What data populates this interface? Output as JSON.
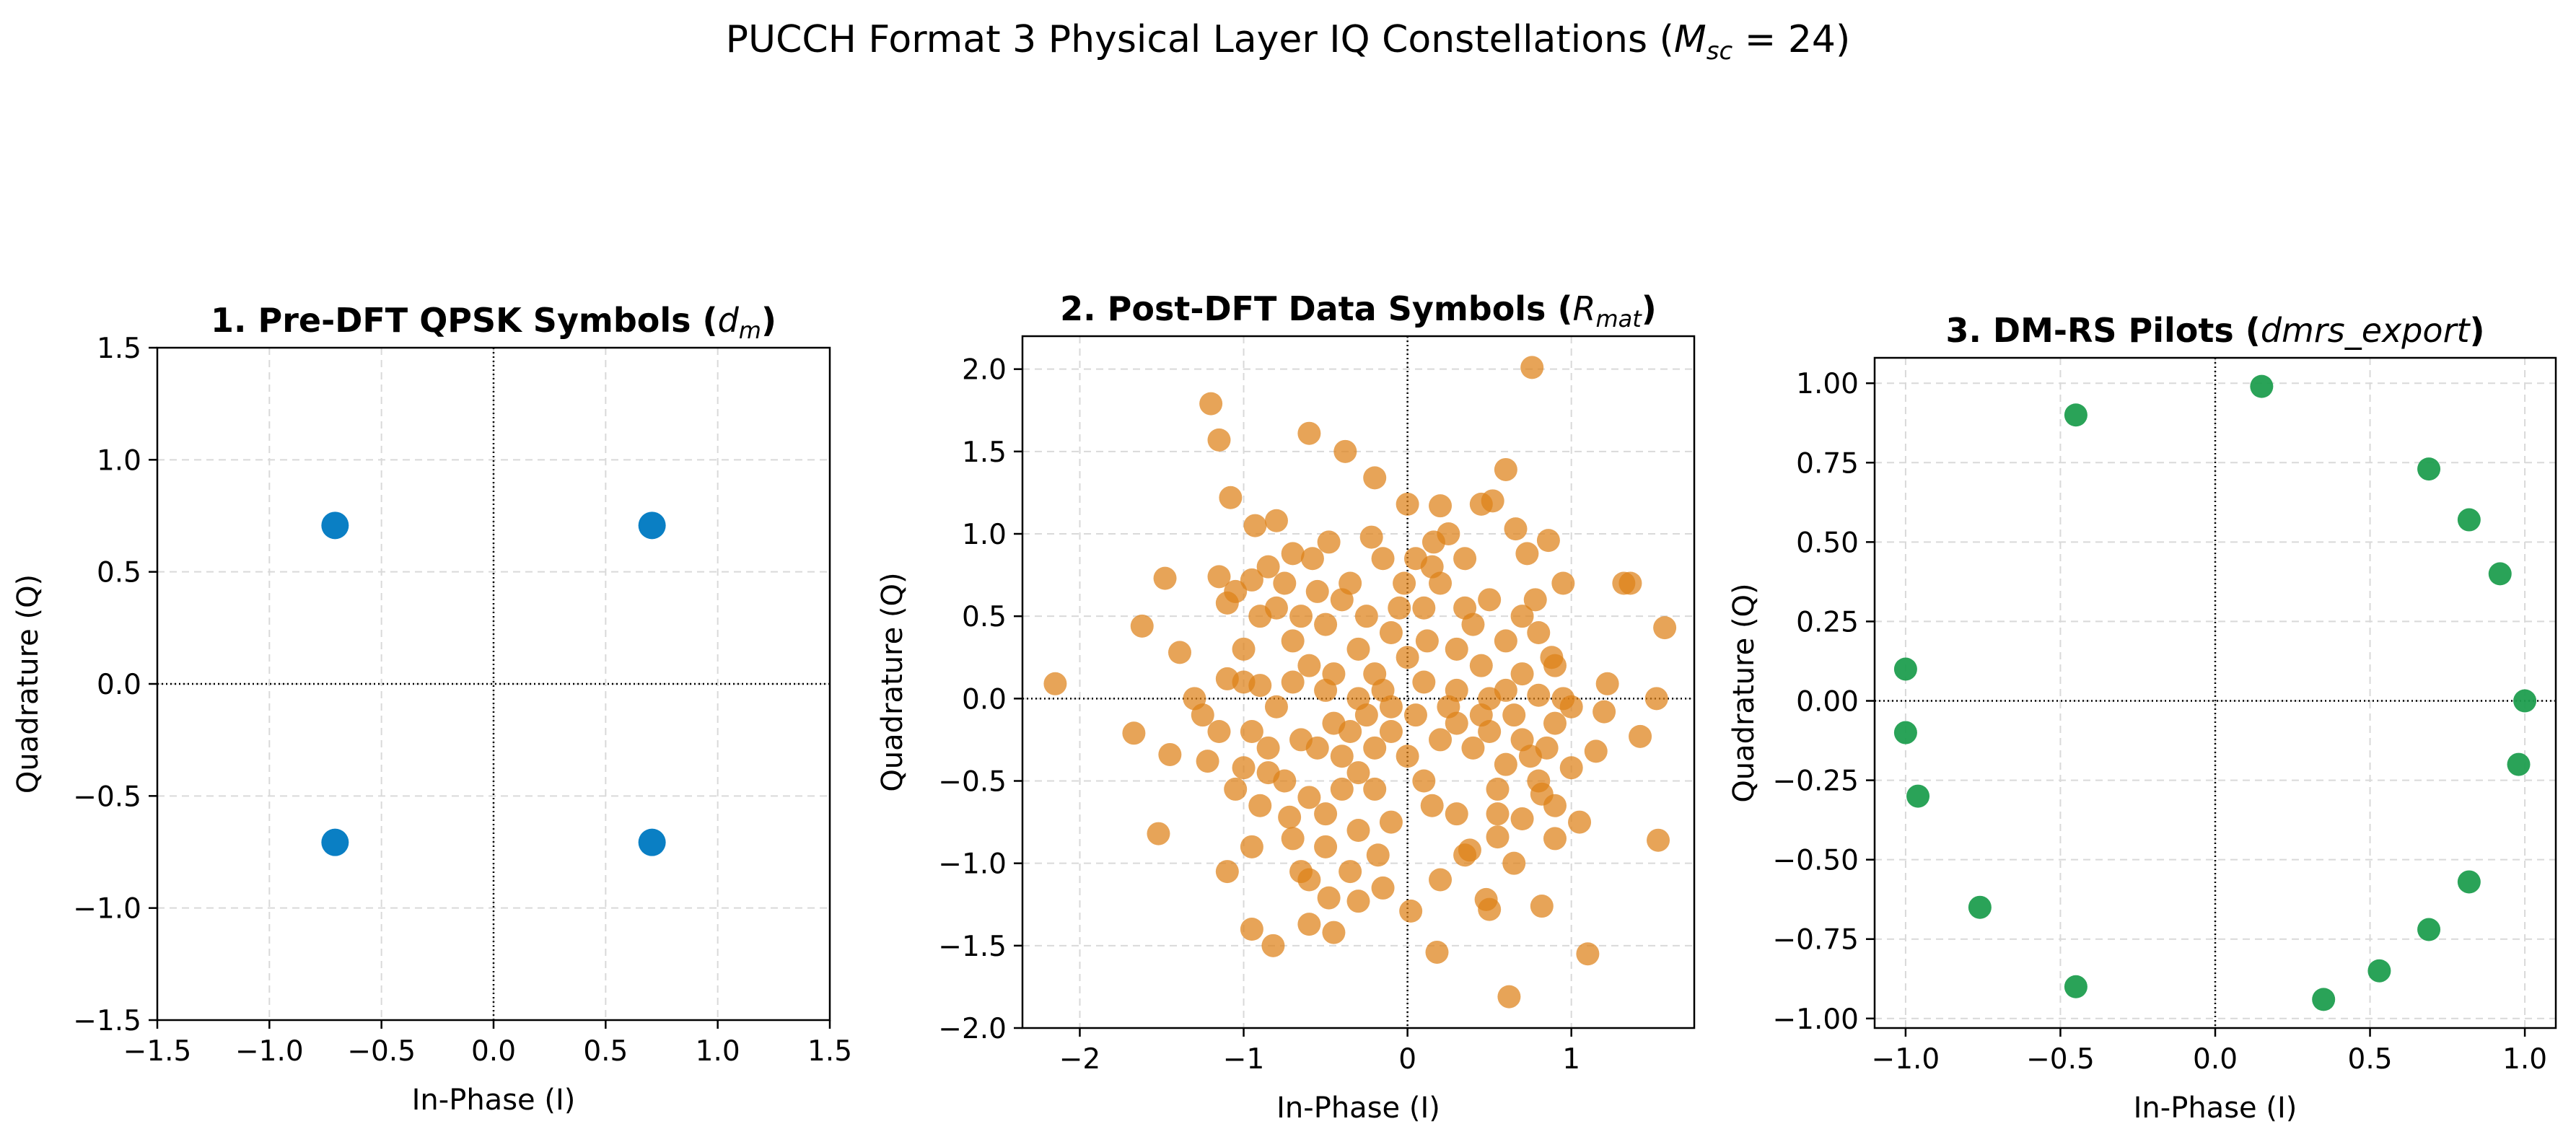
{
  "figure": {
    "title": "PUCCH Format 3 Physical Layer IQ Constellations (",
    "title_math_var": "M",
    "title_math_sub": "sc",
    "title_math_eq": " = 24",
    "title_close": ")"
  },
  "chart_data": [
    {
      "type": "scatter",
      "title": "1. Pre-DFT QPSK Symbols (",
      "title_math": "d",
      "title_math_sub": "m",
      "title_close": ")",
      "xlabel": "In-Phase (I)",
      "ylabel": "Quadrature (Q)",
      "xlim": [
        -1.5,
        1.5
      ],
      "ylim": [
        -1.5,
        1.5
      ],
      "xticks": [
        -1.5,
        -1.0,
        -0.5,
        0.0,
        0.5,
        1.0,
        1.5
      ],
      "yticks": [
        -1.5,
        -1.0,
        -0.5,
        0.0,
        0.5,
        1.0,
        1.5
      ],
      "xtick_labels": [
        "−1.5",
        "−1.0",
        "−0.5",
        "0.0",
        "0.5",
        "1.0",
        "1.5"
      ],
      "ytick_labels": [
        "−1.5",
        "−1.0",
        "−0.5",
        "0.0",
        "0.5",
        "1.0",
        "1.5"
      ],
      "grid": true,
      "color": "#0a7fc4",
      "points": [
        [
          0.707,
          0.707
        ],
        [
          -0.707,
          0.707
        ],
        [
          -0.707,
          -0.707
        ],
        [
          0.707,
          -0.707
        ]
      ]
    },
    {
      "type": "scatter",
      "title": "2. Post-DFT Data Symbols (",
      "title_math": "R",
      "title_math_sub": "mat",
      "title_close": ")",
      "xlabel": "In-Phase (I)",
      "ylabel": "Quadrature (Q)",
      "xlim": [
        -2.35,
        1.75
      ],
      "ylim": [
        -2.0,
        2.2
      ],
      "xticks": [
        -2,
        -1,
        0,
        1
      ],
      "yticks": [
        -2.0,
        -1.5,
        -1.0,
        -0.5,
        0.0,
        0.5,
        1.0,
        1.5,
        2.0
      ],
      "xtick_labels": [
        "−2",
        "−1",
        "0",
        "1"
      ],
      "ytick_labels": [
        "−2.0",
        "−1.5",
        "−1.0",
        "−0.5",
        "0.0",
        "0.5",
        "1.0",
        "1.5",
        "2.0"
      ],
      "grid": true,
      "color": "#de8118",
      "points": [
        [
          -2.15,
          0.09
        ],
        [
          -1.2,
          1.79
        ],
        [
          -1.15,
          1.57
        ],
        [
          -1.08,
          1.22
        ],
        [
          -0.6,
          1.61
        ],
        [
          -0.38,
          1.5
        ],
        [
          -0.2,
          1.34
        ],
        [
          0.76,
          2.01
        ],
        [
          0.6,
          1.39
        ],
        [
          -1.48,
          0.73
        ],
        [
          -1.62,
          0.44
        ],
        [
          -1.39,
          0.28
        ],
        [
          -1.15,
          0.74
        ],
        [
          -1.1,
          0.58
        ],
        [
          -0.95,
          0.72
        ],
        [
          -0.93,
          1.05
        ],
        [
          -0.8,
          1.08
        ],
        [
          -0.7,
          0.88
        ],
        [
          -0.58,
          0.85
        ],
        [
          -0.48,
          0.95
        ],
        [
          -0.22,
          0.98
        ],
        [
          -0.02,
          0.7
        ],
        [
          0.0,
          1.18
        ],
        [
          0.16,
          0.95
        ],
        [
          0.2,
          1.17
        ],
        [
          0.45,
          1.18
        ],
        [
          0.52,
          1.2
        ],
        [
          0.66,
          1.03
        ],
        [
          0.73,
          0.88
        ],
        [
          0.86,
          0.96
        ],
        [
          1.32,
          0.7
        ],
        [
          1.57,
          0.43
        ],
        [
          1.36,
          0.7
        ],
        [
          -1.67,
          -0.21
        ],
        [
          -1.45,
          -0.34
        ],
        [
          -1.52,
          -0.82
        ],
        [
          -1.22,
          -0.38
        ],
        [
          -1.1,
          -1.05
        ],
        [
          -1.0,
          -0.42
        ],
        [
          -0.95,
          -1.4
        ],
        [
          -0.82,
          -1.5
        ],
        [
          -0.72,
          -0.72
        ],
        [
          -0.65,
          -1.05
        ],
        [
          -0.6,
          -1.37
        ],
        [
          -0.48,
          -1.21
        ],
        [
          -0.45,
          -1.42
        ],
        [
          -0.3,
          -1.23
        ],
        [
          -0.18,
          -0.95
        ],
        [
          0.02,
          -1.29
        ],
        [
          0.18,
          -1.54
        ],
        [
          0.2,
          -1.1
        ],
        [
          0.48,
          -1.22
        ],
        [
          0.5,
          -1.28
        ],
        [
          0.62,
          -1.81
        ],
        [
          0.82,
          -1.26
        ],
        [
          1.1,
          -1.55
        ],
        [
          1.53,
          -0.86
        ],
        [
          0.38,
          -0.92
        ],
        [
          0.55,
          -0.84
        ],
        [
          0.7,
          -0.73
        ],
        [
          0.82,
          -0.58
        ],
        [
          0.9,
          -0.65
        ],
        [
          1.0,
          -0.42
        ],
        [
          1.15,
          -0.32
        ],
        [
          1.42,
          -0.23
        ],
        [
          1.52,
          0.0
        ],
        [
          1.2,
          -0.08
        ],
        [
          1.22,
          0.09
        ],
        [
          0.95,
          0.0
        ],
        [
          0.8,
          0.02
        ],
        [
          0.6,
          0.05
        ],
        [
          0.5,
          0.0
        ],
        [
          0.3,
          0.05
        ],
        [
          0.1,
          0.1
        ],
        [
          -0.1,
          -0.05
        ],
        [
          -0.3,
          0.0
        ],
        [
          -0.5,
          0.05
        ],
        [
          -0.7,
          0.1
        ],
        [
          -0.9,
          0.08
        ],
        [
          -1.1,
          0.12
        ],
        [
          -1.25,
          -0.1
        ],
        [
          -1.0,
          0.1
        ],
        [
          -0.95,
          -0.2
        ],
        [
          -0.85,
          -0.3
        ],
        [
          -0.75,
          -0.5
        ],
        [
          -0.6,
          -0.6
        ],
        [
          -0.5,
          -0.7
        ],
        [
          -0.4,
          -0.55
        ],
        [
          -0.3,
          -0.45
        ],
        [
          -0.2,
          -0.3
        ],
        [
          -0.1,
          -0.2
        ],
        [
          0.0,
          -0.35
        ],
        [
          0.1,
          -0.5
        ],
        [
          0.2,
          -0.25
        ],
        [
          0.3,
          -0.15
        ],
        [
          0.4,
          -0.3
        ],
        [
          0.5,
          -0.2
        ],
        [
          0.6,
          -0.4
        ],
        [
          0.7,
          -0.25
        ],
        [
          0.8,
          -0.5
        ],
        [
          0.9,
          -0.15
        ],
        [
          1.0,
          -0.05
        ],
        [
          -1.0,
          0.3
        ],
        [
          -0.9,
          0.5
        ],
        [
          -0.8,
          0.55
        ],
        [
          -0.7,
          0.35
        ],
        [
          -0.6,
          0.2
        ],
        [
          -0.5,
          0.45
        ],
        [
          -0.4,
          0.6
        ],
        [
          -0.3,
          0.3
        ],
        [
          -0.2,
          0.15
        ],
        [
          -0.1,
          0.4
        ],
        [
          0.0,
          0.25
        ],
        [
          0.1,
          0.55
        ],
        [
          0.2,
          0.7
        ],
        [
          0.3,
          0.3
        ],
        [
          0.4,
          0.45
        ],
        [
          0.5,
          0.6
        ],
        [
          0.6,
          0.35
        ],
        [
          0.7,
          0.5
        ],
        [
          0.8,
          0.4
        ],
        [
          0.9,
          0.2
        ],
        [
          0.95,
          0.7
        ],
        [
          0.78,
          0.6
        ],
        [
          0.35,
          0.85
        ],
        [
          0.15,
          0.8
        ],
        [
          -0.15,
          0.85
        ],
        [
          -0.35,
          0.7
        ],
        [
          -0.55,
          0.65
        ],
        [
          -0.75,
          0.7
        ],
        [
          -0.85,
          0.8
        ],
        [
          -1.05,
          0.65
        ],
        [
          -0.55,
          -0.3
        ],
        [
          -0.45,
          -0.15
        ],
        [
          -0.35,
          -0.2
        ],
        [
          -0.25,
          -0.1
        ],
        [
          -0.15,
          0.05
        ],
        [
          0.05,
          -0.1
        ],
        [
          0.25,
          -0.05
        ],
        [
          0.45,
          -0.1
        ],
        [
          0.65,
          -0.1
        ],
        [
          0.85,
          -0.3
        ],
        [
          0.15,
          -0.65
        ],
        [
          0.3,
          -0.7
        ],
        [
          0.55,
          -0.55
        ],
        [
          0.75,
          -0.35
        ],
        [
          -0.1,
          -0.75
        ],
        [
          -0.3,
          -0.8
        ],
        [
          -0.5,
          -0.9
        ],
        [
          -0.7,
          -0.85
        ],
        [
          -0.9,
          -0.65
        ],
        [
          -1.05,
          -0.55
        ],
        [
          -0.95,
          -0.9
        ],
        [
          -0.6,
          -1.1
        ],
        [
          -0.35,
          -1.05
        ],
        [
          -0.15,
          -1.15
        ],
        [
          0.35,
          -0.95
        ],
        [
          0.65,
          -1.0
        ],
        [
          0.9,
          -0.85
        ],
        [
          1.05,
          -0.75
        ],
        [
          -0.25,
          0.5
        ],
        [
          0.05,
          0.85
        ],
        [
          0.25,
          1.0
        ],
        [
          -0.65,
          0.5
        ],
        [
          -0.45,
          0.15
        ],
        [
          0.45,
          0.2
        ],
        [
          0.7,
          0.15
        ],
        [
          0.88,
          0.25
        ],
        [
          -0.8,
          -0.05
        ],
        [
          -1.15,
          -0.2
        ],
        [
          -1.3,
          0.0
        ],
        [
          -0.05,
          0.55
        ],
        [
          0.12,
          0.35
        ],
        [
          0.35,
          0.55
        ],
        [
          0.55,
          -0.7
        ],
        [
          -0.2,
          -0.55
        ],
        [
          -0.4,
          -0.35
        ],
        [
          -0.65,
          -0.25
        ],
        [
          -0.85,
          -0.45
        ]
      ]
    },
    {
      "type": "scatter",
      "title": "3. DM-RS Pilots (",
      "title_math": "dmrs_export",
      "title_math_sub": "",
      "title_close": ")",
      "xlabel": "In-Phase (I)",
      "ylabel": "Quadrature (Q)",
      "xlim": [
        -1.1,
        1.1
      ],
      "ylim": [
        -1.03,
        1.08
      ],
      "xticks": [
        -1.0,
        -0.5,
        0.0,
        0.5,
        1.0
      ],
      "yticks": [
        -1.0,
        -0.75,
        -0.5,
        -0.25,
        0.0,
        0.25,
        0.5,
        0.75,
        1.0
      ],
      "xtick_labels": [
        "−1.0",
        "−0.5",
        "0.0",
        "0.5",
        "1.0"
      ],
      "ytick_labels": [
        "−1.00",
        "−0.75",
        "−0.50",
        "−0.25",
        "0.00",
        "0.25",
        "0.50",
        "0.75",
        "1.00"
      ],
      "grid": true,
      "color": "#1f9e4f",
      "points": [
        [
          0.15,
          0.99
        ],
        [
          -0.45,
          0.9
        ],
        [
          0.69,
          0.73
        ],
        [
          0.82,
          0.57
        ],
        [
          0.92,
          0.4
        ],
        [
          1.0,
          0.0
        ],
        [
          0.98,
          -0.2
        ],
        [
          0.82,
          -0.57
        ],
        [
          0.69,
          -0.72
        ],
        [
          0.53,
          -0.85
        ],
        [
          0.35,
          -0.94
        ],
        [
          -0.45,
          -0.9
        ],
        [
          -0.76,
          -0.65
        ],
        [
          -0.96,
          -0.3
        ],
        [
          -1.0,
          -0.1
        ],
        [
          -1.0,
          0.1
        ]
      ]
    }
  ]
}
